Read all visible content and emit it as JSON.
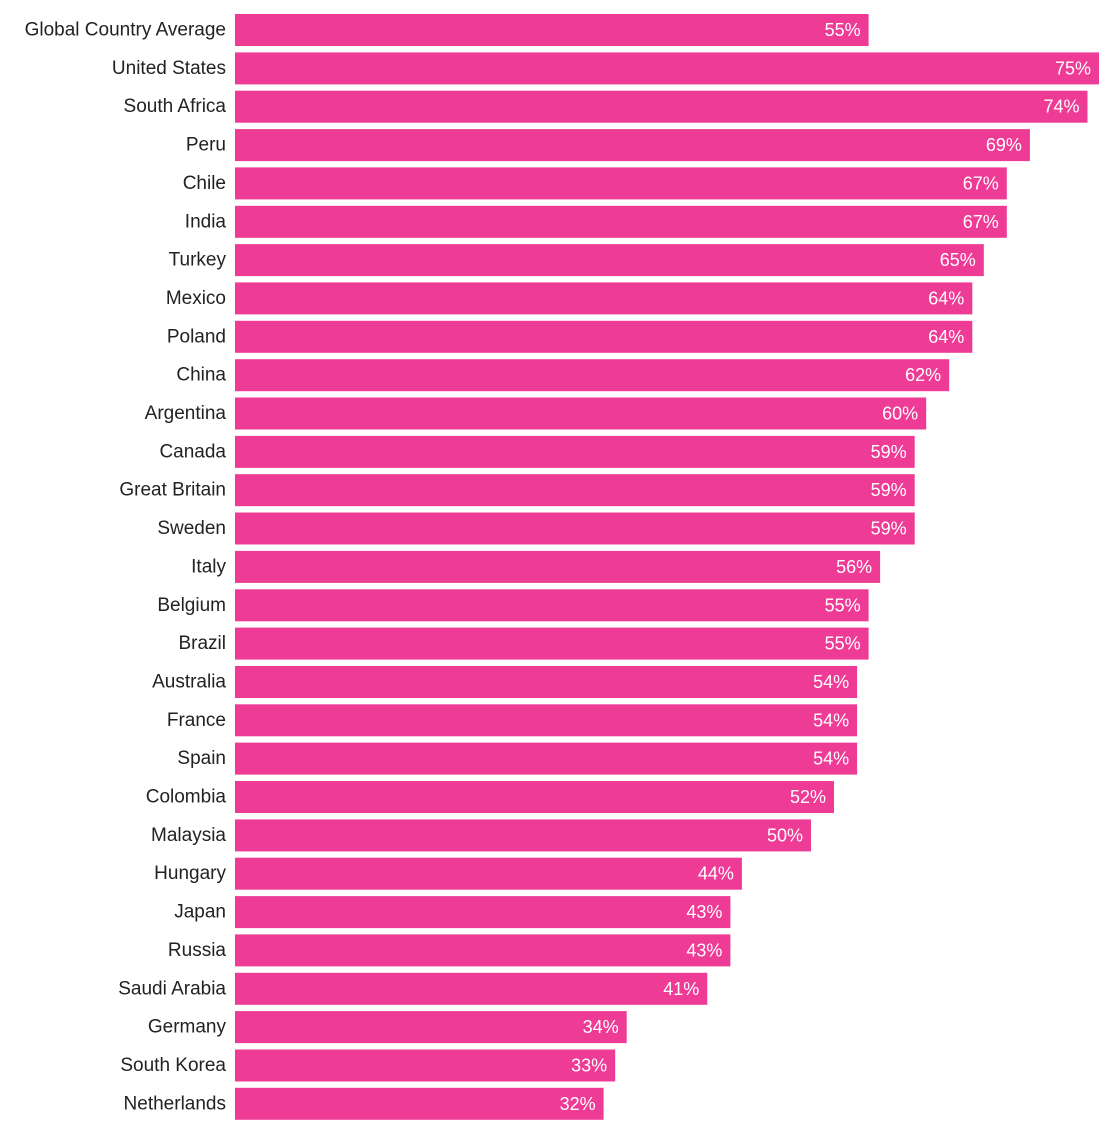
{
  "chart_data": {
    "type": "bar",
    "orientation": "horizontal",
    "categories": [
      "Global Country Average",
      "United States",
      "South Africa",
      "Peru",
      "Chile",
      "India",
      "Turkey",
      "Mexico",
      "Poland",
      "China",
      "Argentina",
      "Canada",
      "Great Britain",
      "Sweden",
      "Italy",
      "Belgium",
      "Brazil",
      "Australia",
      "France",
      "Spain",
      "Colombia",
      "Malaysia",
      "Hungary",
      "Japan",
      "Russia",
      "Saudi Arabia",
      "Germany",
      "South Korea",
      "Netherlands"
    ],
    "values": [
      55,
      75,
      74,
      69,
      67,
      67,
      65,
      64,
      64,
      62,
      60,
      59,
      59,
      59,
      56,
      55,
      55,
      54,
      54,
      54,
      52,
      50,
      44,
      43,
      43,
      41,
      34,
      33,
      32
    ],
    "value_labels": [
      "55%",
      "75%",
      "74%",
      "69%",
      "67%",
      "67%",
      "65%",
      "64%",
      "64%",
      "62%",
      "60%",
      "59%",
      "59%",
      "59%",
      "56%",
      "55%",
      "55%",
      "54%",
      "54%",
      "54%",
      "52%",
      "50%",
      "44%",
      "43%",
      "43%",
      "41%",
      "34%",
      "33%",
      "32%"
    ],
    "unit": "%",
    "xlim": [
      0,
      75
    ],
    "grid": false,
    "legend": "none",
    "bar_color": "#ee3b96"
  }
}
